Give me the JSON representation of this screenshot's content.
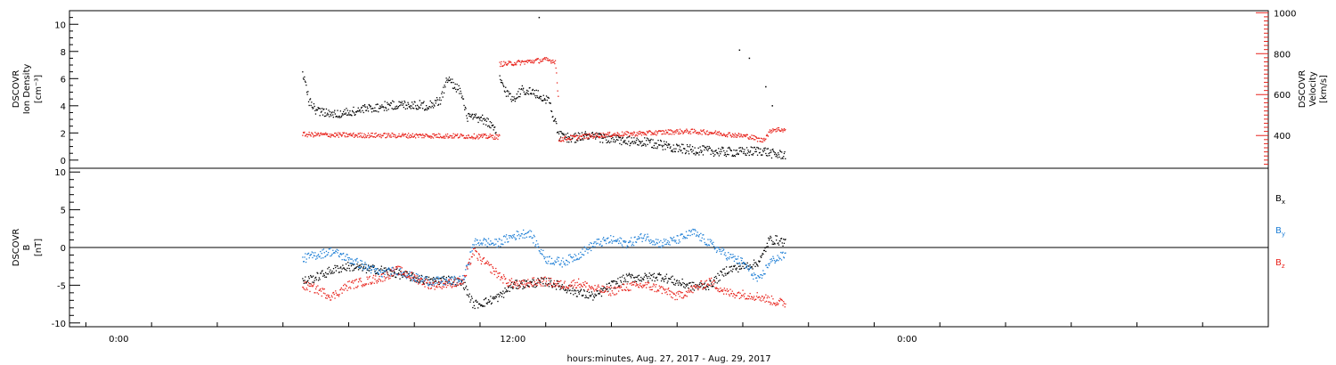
{
  "chart_data": [
    {
      "type": "scatter",
      "panel": "top",
      "ylabel_left": [
        "DSCOVR",
        "Ion Density",
        "[cm⁻³]"
      ],
      "ylabel_right": [
        "DSCOVR",
        "Velocity",
        "[km/s]"
      ],
      "ylim_left": [
        -0.6,
        11
      ],
      "yticks_left": [
        0,
        2,
        4,
        6,
        8,
        10
      ],
      "ylim_right": [
        240,
        1010
      ],
      "yticks_right": [
        400,
        600,
        800,
        1000
      ],
      "grid": false,
      "series": [
        {
          "color": "#000000",
          "axis": "left",
          "segments": [
            {
              "x": [
                5.6,
                5.8,
                6.0,
                6.4,
                7.0,
                7.6,
                8.2,
                8.8,
                9.4,
                9.8,
                10.0,
                10.4,
                10.6,
                10.8,
                11.2,
                11.5
              ],
              "y": [
                6.5,
                4.3,
                3.6,
                3.4,
                3.5,
                3.8,
                4.0,
                4.1,
                4.0,
                4.4,
                6.0,
                5.1,
                3.2,
                3.1,
                2.9,
                2.0
              ]
            },
            {
              "x": [
                11.6,
                11.8,
                12.0,
                12.3,
                12.6,
                12.9,
                13.1,
                13.4,
                13.8,
                14.2,
                14.8,
                15.4,
                16.0,
                16.6,
                17.2,
                17.8,
                18.4,
                19.0,
                19.6,
                20.0,
                20.3
              ],
              "y": [
                6.0,
                5.0,
                4.5,
                5.2,
                5.0,
                4.6,
                4.4,
                1.8,
                1.6,
                1.8,
                1.6,
                1.4,
                1.3,
                1.1,
                0.8,
                0.7,
                0.6,
                0.6,
                0.7,
                0.4,
                0.4
              ]
            }
          ],
          "outliers": [
            {
              "x": 12.8,
              "y": 10.5
            },
            {
              "x": 18.9,
              "y": 8.1
            },
            {
              "x": 19.2,
              "y": 7.5
            },
            {
              "x": 19.7,
              "y": 5.4
            },
            {
              "x": 19.9,
              "y": 4.0
            }
          ]
        },
        {
          "color": "#e8231c",
          "axis": "right",
          "segments": [
            {
              "x": [
                5.6,
                6.5,
                7.5,
                8.5,
                9.5,
                10.5,
                11.2,
                11.6
              ],
              "y": [
                405,
                403,
                401,
                400,
                399,
                397,
                395,
                393
              ]
            },
            {
              "x": [
                11.6,
                11.8,
                12.1,
                12.4,
                12.7,
                13.0,
                13.3,
                13.4
              ],
              "y": [
                750,
                750,
                755,
                760,
                765,
                770,
                762,
                540
              ]
            },
            {
              "x": [
                13.4,
                13.8,
                14.4,
                15.0,
                15.6,
                16.2,
                16.8,
                17.4,
                18.0,
                18.6,
                19.2,
                19.6,
                19.9,
                20.3
              ],
              "y": [
                380,
                390,
                398,
                405,
                408,
                412,
                418,
                420,
                415,
                405,
                395,
                375,
                430,
                428
              ]
            }
          ]
        }
      ]
    },
    {
      "type": "scatter",
      "panel": "bottom",
      "ylabel_left": [
        "DSCOVR",
        "B",
        "[nT]"
      ],
      "ylim": [
        -10.5,
        10.5
      ],
      "yticks": [
        -10,
        -5,
        0,
        5,
        10
      ],
      "zero_line": true,
      "xlabel": "hours:minutes, Aug. 27, 2017 - Aug. 29, 2017",
      "xlim": [
        -1.5,
        35
      ],
      "xticks": [
        0,
        12,
        24
      ],
      "xticklabels": [
        "0:00",
        "12:00",
        "0:00"
      ],
      "legend": [
        {
          "text": "B",
          "sub": "x",
          "color": "#000000"
        },
        {
          "text": "B",
          "sub": "y",
          "color": "#1f7fd6"
        },
        {
          "text": "B",
          "sub": "z",
          "color": "#e8231c"
        }
      ],
      "legend_placement": "right",
      "series": [
        {
          "color": "#000000",
          "x": [
            5.6,
            6.0,
            6.5,
            7.0,
            7.5,
            8.0,
            8.5,
            9.0,
            9.5,
            10.0,
            10.5,
            10.8,
            11.2,
            11.6,
            12.0,
            12.5,
            13.0,
            13.5,
            14.0,
            14.5,
            15.0,
            15.5,
            16.0,
            16.5,
            17.0,
            17.5,
            18.0,
            18.5,
            19.0,
            19.4,
            19.6,
            19.8,
            20.0,
            20.3
          ],
          "y": [
            -4.5,
            -4.0,
            -3.0,
            -2.5,
            -2.8,
            -3.0,
            -3.5,
            -4.0,
            -4.5,
            -4.2,
            -4.8,
            -7.6,
            -7.2,
            -6.5,
            -5.0,
            -4.8,
            -4.5,
            -5.2,
            -6.0,
            -6.5,
            -5.0,
            -4.0,
            -4.0,
            -3.8,
            -4.6,
            -5.2,
            -5.0,
            -3.0,
            -2.5,
            -2.2,
            -1.2,
            1.0,
            1.0,
            0.7
          ]
        },
        {
          "color": "#1f7fd6",
          "x": [
            5.6,
            6.0,
            6.5,
            7.0,
            7.5,
            8.0,
            8.5,
            9.0,
            9.5,
            10.0,
            10.5,
            10.8,
            11.0,
            11.5,
            12.0,
            12.5,
            13.0,
            13.5,
            14.0,
            14.5,
            15.0,
            15.5,
            16.0,
            16.5,
            17.0,
            17.5,
            18.0,
            18.5,
            19.0,
            19.5,
            19.8,
            20.0,
            20.3
          ],
          "y": [
            -1.5,
            -1.0,
            -0.5,
            -1.5,
            -2.5,
            -3.5,
            -3.0,
            -4.0,
            -4.5,
            -4.5,
            -4.3,
            0.5,
            0.8,
            0.5,
            1.5,
            2.0,
            -1.5,
            -2.0,
            -1.0,
            0.5,
            1.0,
            0.5,
            1.5,
            0.5,
            1.0,
            2.0,
            0.5,
            -1.0,
            -2.0,
            -4.5,
            -2.0,
            -1.5,
            -1.0
          ]
        },
        {
          "color": "#e8231c",
          "x": [
            5.6,
            6.0,
            6.5,
            7.0,
            7.5,
            8.0,
            8.5,
            9.0,
            9.5,
            10.0,
            10.5,
            10.8,
            11.0,
            11.4,
            11.8,
            12.2,
            12.6,
            13.0,
            13.5,
            14.0,
            14.5,
            15.0,
            15.5,
            16.0,
            16.5,
            17.0,
            17.5,
            18.0,
            18.5,
            19.0,
            19.5,
            20.0,
            20.3
          ],
          "y": [
            -5.0,
            -5.5,
            -6.5,
            -5.0,
            -4.5,
            -4.0,
            -3.0,
            -4.0,
            -5.0,
            -4.8,
            -4.5,
            -0.5,
            -1.5,
            -3.0,
            -4.5,
            -5.0,
            -4.6,
            -4.5,
            -5.0,
            -4.7,
            -5.5,
            -5.8,
            -5.2,
            -5.0,
            -5.5,
            -6.5,
            -5.5,
            -4.5,
            -6.0,
            -6.2,
            -6.5,
            -7.2,
            -7.4
          ]
        }
      ]
    }
  ]
}
